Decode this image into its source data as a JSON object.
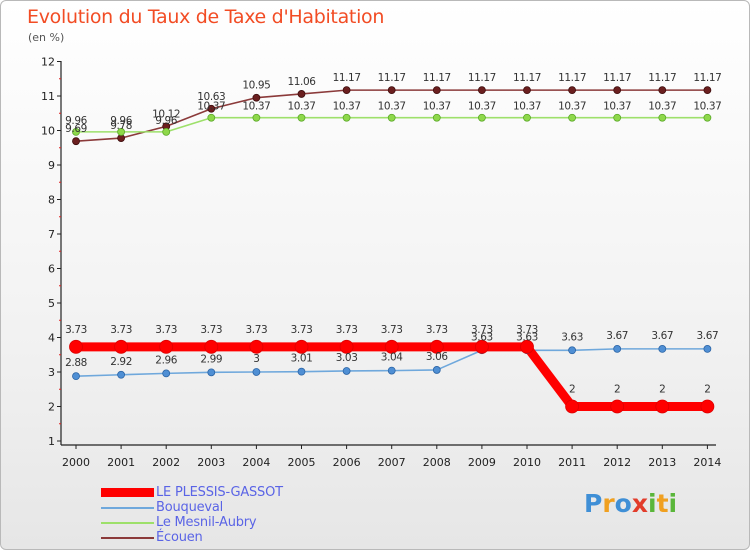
{
  "header": {
    "title": "Evolution du Taux de Taxe d'Habitation",
    "subtitle": "(en %)"
  },
  "logo": {
    "text": "Proxiti",
    "letter_colors": [
      "#3f8fd6",
      "#f0a020",
      "#3f8fd6",
      "#e23c2b",
      "#5ab63a",
      "#f0a020",
      "#5ab63a"
    ]
  },
  "chart_data": {
    "type": "line",
    "title": "Evolution du Taux de Taxe d'Habitation",
    "ylabel": "(en %)",
    "xlabel": "",
    "x": [
      "2000",
      "2001",
      "2002",
      "2003",
      "2004",
      "2005",
      "2006",
      "2007",
      "2008",
      "2009",
      "2010",
      "2011",
      "2012",
      "2013",
      "2014"
    ],
    "ylim": [
      1,
      12
    ],
    "yticks": [
      1,
      2,
      3,
      4,
      5,
      6,
      7,
      8,
      9,
      10,
      11,
      12
    ],
    "grid": false,
    "legend_position": "bottom-left",
    "series": [
      {
        "name": "LE PLESSIS-GASSOT",
        "color": "#ff0000",
        "values": [
          3.73,
          3.73,
          3.73,
          3.73,
          3.73,
          3.73,
          3.73,
          3.73,
          3.73,
          3.73,
          3.73,
          2,
          2,
          2,
          2
        ],
        "labels": [
          "3.73",
          "3.73",
          "3.73",
          "3.73",
          "3.73",
          "3.73",
          "3.73",
          "3.73",
          "3.73",
          "3.73",
          "3.73",
          "2",
          "2",
          "2",
          "2"
        ]
      },
      {
        "name": "Bouqueval",
        "color": "#6fa8dc",
        "values": [
          2.88,
          2.92,
          2.96,
          2.99,
          3,
          3.01,
          3.03,
          3.04,
          3.06,
          3.63,
          3.63,
          3.63,
          3.67,
          3.67,
          3.67
        ],
        "labels": [
          "2.88",
          "2.92",
          "2.96",
          "2.99",
          "3",
          "3.01",
          "3.03",
          "3.04",
          "3.06",
          "3.63",
          "3.63",
          "3.63",
          "3.67",
          "3.67",
          "3.67"
        ]
      },
      {
        "name": "Le Mesnil-Aubry",
        "color": "#9de06a",
        "values": [
          9.96,
          9.96,
          9.96,
          10.37,
          10.37,
          10.37,
          10.37,
          10.37,
          10.37,
          10.37,
          10.37,
          10.37,
          10.37,
          10.37,
          10.37
        ],
        "labels": [
          "9.96",
          "9.96",
          "9.96",
          "10.37",
          "10.37",
          "10.37",
          "10.37",
          "10.37",
          "10.37",
          "10.37",
          "10.37",
          "10.37",
          "10.37",
          "10.37",
          "10.37"
        ]
      },
      {
        "name": "Écouen",
        "color": "#8b3a3a",
        "values": [
          9.69,
          9.78,
          10.12,
          10.63,
          10.95,
          11.06,
          11.17,
          11.17,
          11.17,
          11.17,
          11.17,
          11.17,
          11.17,
          11.17,
          11.17
        ],
        "labels": [
          "9.69",
          "9.78",
          "10.12",
          "10.63",
          "10.95",
          "11.06",
          "11.17",
          "11.17",
          "11.17",
          "11.17",
          "11.17",
          "11.17",
          "11.17",
          "11.17",
          "11.17"
        ]
      }
    ]
  }
}
